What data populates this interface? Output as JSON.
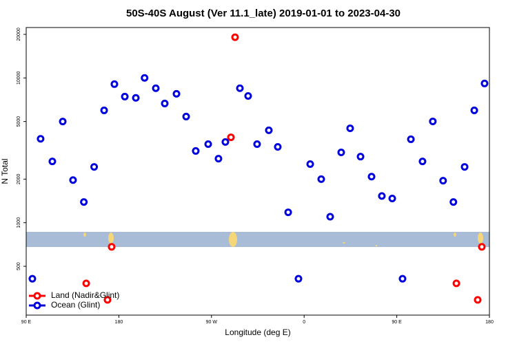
{
  "chart_data": {
    "type": "scatter",
    "title": "50S-40S August (Ver 11.1_late)   2019-01-01 to 2023-04-30",
    "xlabel": "Longitude (deg E)",
    "ylabel": "N Total",
    "xlim": [
      90,
      540
    ],
    "xticks": [
      {
        "value": 90,
        "label": "90 E"
      },
      180,
      {
        "value": 270,
        "label": "90 W"
      },
      {
        "value": 360,
        "label": "0"
      },
      {
        "value": 450,
        "label": "90 E"
      },
      {
        "value": 540,
        "label": "180"
      }
    ],
    "ylim": [
      230,
      22300
    ],
    "yticks": [
      500,
      1000,
      2000,
      5000,
      10000,
      20000
    ],
    "log_y": true,
    "legend": "bottom-left",
    "series": [
      {
        "name": "Land (Nadir&Glint)",
        "color": "#ff0000",
        "x": [
          292.9,
          288.9,
          173,
          148.3,
          169,
          507.9,
          528.6,
          532.6
        ],
        "values": [
          19100,
          3890,
          681,
          381,
          293,
          381,
          293,
          681
        ]
      },
      {
        "name": "Ocean (Glint)",
        "color": "#0000dd",
        "x": [
          96,
          104,
          115.4,
          125.5,
          135.5,
          146,
          156,
          165.7,
          175.7,
          185.8,
          196.5,
          205,
          215.9,
          224.6,
          236,
          245.4,
          254.7,
          266.8,
          276.8,
          283.5,
          297.6,
          305.6,
          314.3,
          325.7,
          334.4,
          344.5,
          354.5,
          365.9,
          376.6,
          385.3,
          396,
          404.7,
          414.8,
          425.5,
          435.5,
          445.6,
          455.6,
          463.7,
          475,
          485,
          495,
          505,
          515.9,
          525.3,
          535.3
        ],
        "values": [
          410,
          3800,
          2650,
          5000,
          1970,
          1390,
          2430,
          5970,
          9060,
          7430,
          7280,
          10000,
          8490,
          6660,
          7770,
          5410,
          3130,
          3490,
          2770,
          3610,
          8490,
          7510,
          3490,
          4350,
          3340,
          1180,
          410,
          2540,
          2000,
          1100,
          3060,
          4490,
          2860,
          2080,
          1530,
          1470,
          410,
          3770,
          2650,
          5010,
          1950,
          1390,
          2430,
          5970,
          9160
        ]
      }
    ]
  }
}
